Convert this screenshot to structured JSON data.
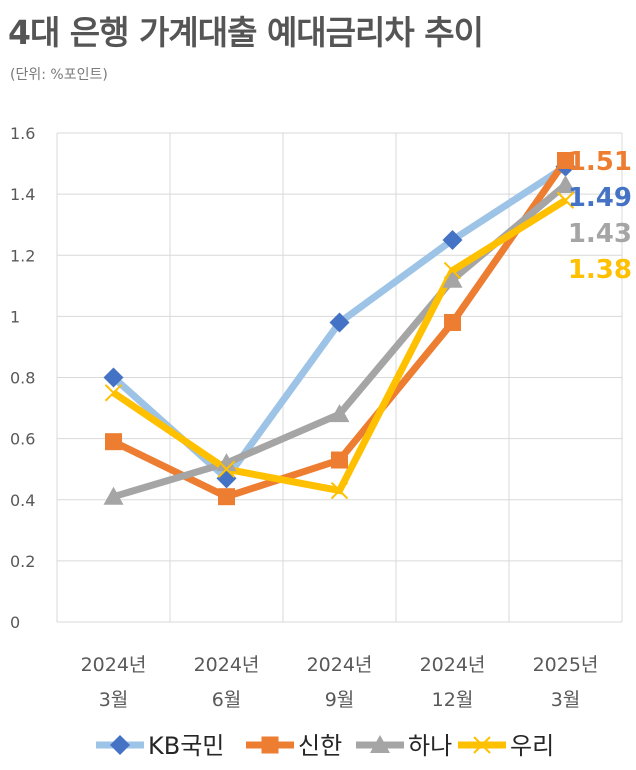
{
  "title": "4대 은행 가계대출 예대금리차 추이",
  "subtitle": "(단위: %포인트)",
  "chart_data": {
    "type": "line",
    "categories": [
      [
        "2024년",
        "3월"
      ],
      [
        "2024년",
        "6월"
      ],
      [
        "2024년",
        "9월"
      ],
      [
        "2024년",
        "12월"
      ],
      [
        "2025년",
        "3월"
      ]
    ],
    "ylim": [
      0,
      1.6
    ],
    "yticks": [
      "0",
      "0.2",
      "0.4",
      "0.6",
      "0.8",
      "1",
      "1.2",
      "1.4",
      "1.6"
    ],
    "grid": true,
    "legend_position": "bottom",
    "series": [
      {
        "name": "KB국민",
        "values": [
          0.8,
          0.47,
          0.98,
          1.25,
          1.49
        ],
        "color": "#9dc3e6",
        "marker_color": "#4472c4",
        "marker": "diamond",
        "end_label": "1.49",
        "label_color": "#4472c4"
      },
      {
        "name": "신한",
        "values": [
          0.59,
          0.41,
          0.53,
          0.98,
          1.51
        ],
        "color": "#ed7d31",
        "marker_color": "#ed7d31",
        "marker": "square",
        "end_label": "1.51",
        "label_color": "#ed7d31"
      },
      {
        "name": "하나",
        "values": [
          0.41,
          0.52,
          0.68,
          1.12,
          1.43
        ],
        "color": "#a5a5a5",
        "marker_color": "#a5a5a5",
        "marker": "triangle",
        "end_label": "1.43",
        "label_color": "#a5a5a5"
      },
      {
        "name": "우리",
        "values": [
          0.75,
          0.5,
          0.43,
          1.15,
          1.38
        ],
        "color": "#ffc000",
        "marker_color": "#ffc000",
        "marker": "x",
        "end_label": "1.38",
        "label_color": "#ffc000"
      }
    ]
  }
}
